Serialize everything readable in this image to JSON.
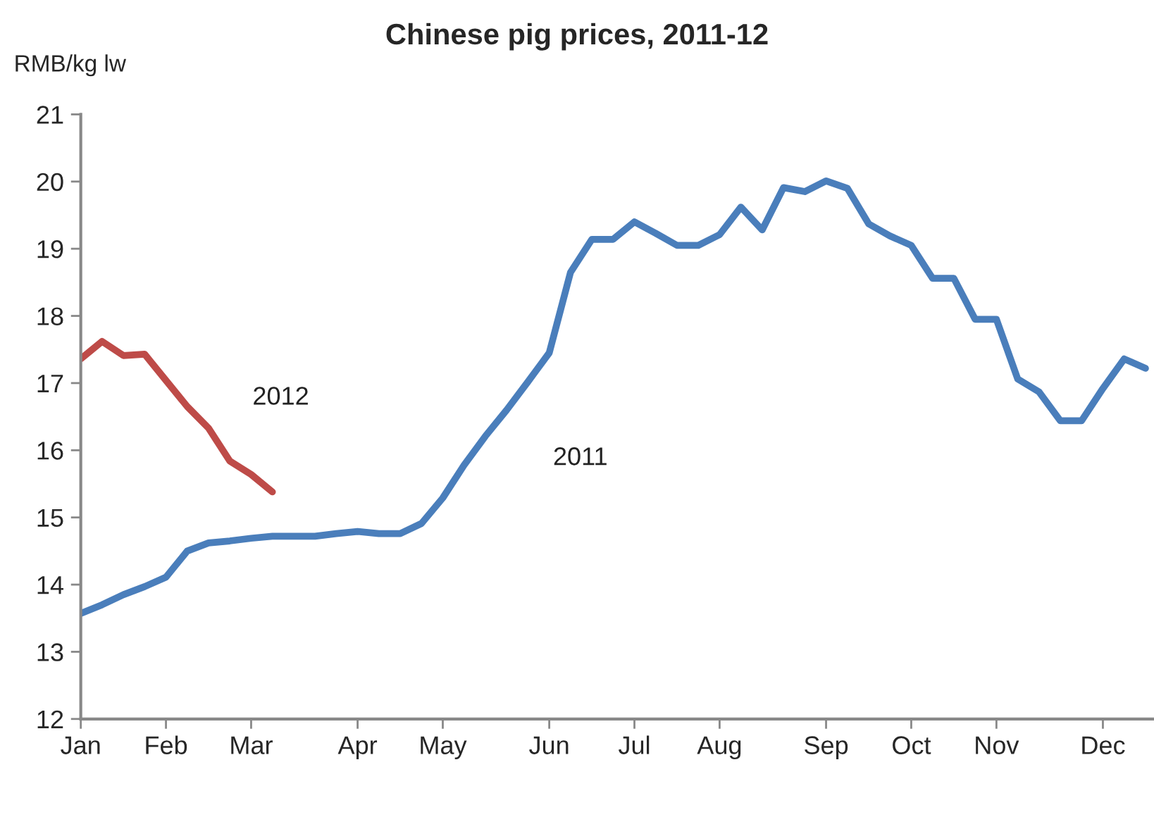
{
  "chart_data": {
    "type": "line",
    "title": "Chinese pig prices, 2011-12",
    "ylabel": "RMB/kg lw",
    "categories": [
      "Jan",
      null,
      null,
      null,
      "Feb",
      null,
      null,
      null,
      "Mar",
      null,
      null,
      null,
      null,
      "Apr",
      null,
      null,
      null,
      "May",
      null,
      null,
      null,
      null,
      "Jun",
      null,
      null,
      null,
      "Jul",
      null,
      null,
      null,
      "Aug",
      null,
      null,
      null,
      null,
      "Sep",
      null,
      null,
      null,
      "Oct",
      null,
      null,
      null,
      "Nov",
      null,
      null,
      null,
      null,
      "Dec",
      null,
      null
    ],
    "ylim": [
      12,
      21
    ],
    "yticks": [
      12,
      13,
      14,
      15,
      16,
      17,
      18,
      19,
      20,
      21
    ],
    "grid": false,
    "legend": false,
    "marker": "none",
    "line_style": "solid",
    "series": [
      {
        "name": "2011",
        "color": "#4a7ebb",
        "values": [
          13.57,
          13.7,
          13.85,
          13.97,
          14.11,
          14.5,
          14.62,
          14.65,
          14.69,
          14.72,
          14.72,
          14.72,
          14.76,
          14.79,
          14.76,
          14.76,
          14.91,
          15.29,
          15.78,
          16.21,
          16.6,
          17.02,
          17.45,
          18.65,
          19.14,
          19.14,
          19.4,
          19.23,
          19.05,
          19.05,
          19.21,
          19.62,
          19.28,
          19.91,
          19.85,
          20.01,
          19.9,
          19.37,
          19.19,
          19.05,
          18.56,
          18.56,
          17.95,
          17.95,
          17.06,
          16.87,
          16.44,
          16.44,
          16.92,
          17.36,
          17.22
        ]
      },
      {
        "name": "2012",
        "color": "#be4b48",
        "values": [
          17.36,
          17.62,
          17.41,
          17.43,
          17.04,
          16.65,
          16.33,
          15.84,
          15.64,
          15.38,
          null,
          null,
          null,
          null,
          null,
          null,
          null,
          null,
          null,
          null,
          null,
          null,
          null,
          null,
          null,
          null,
          null,
          null,
          null,
          null,
          null,
          null,
          null,
          null,
          null,
          null,
          null,
          null,
          null,
          null,
          null,
          null,
          null,
          null,
          null,
          null,
          null,
          null,
          null,
          null,
          null
        ]
      }
    ]
  }
}
